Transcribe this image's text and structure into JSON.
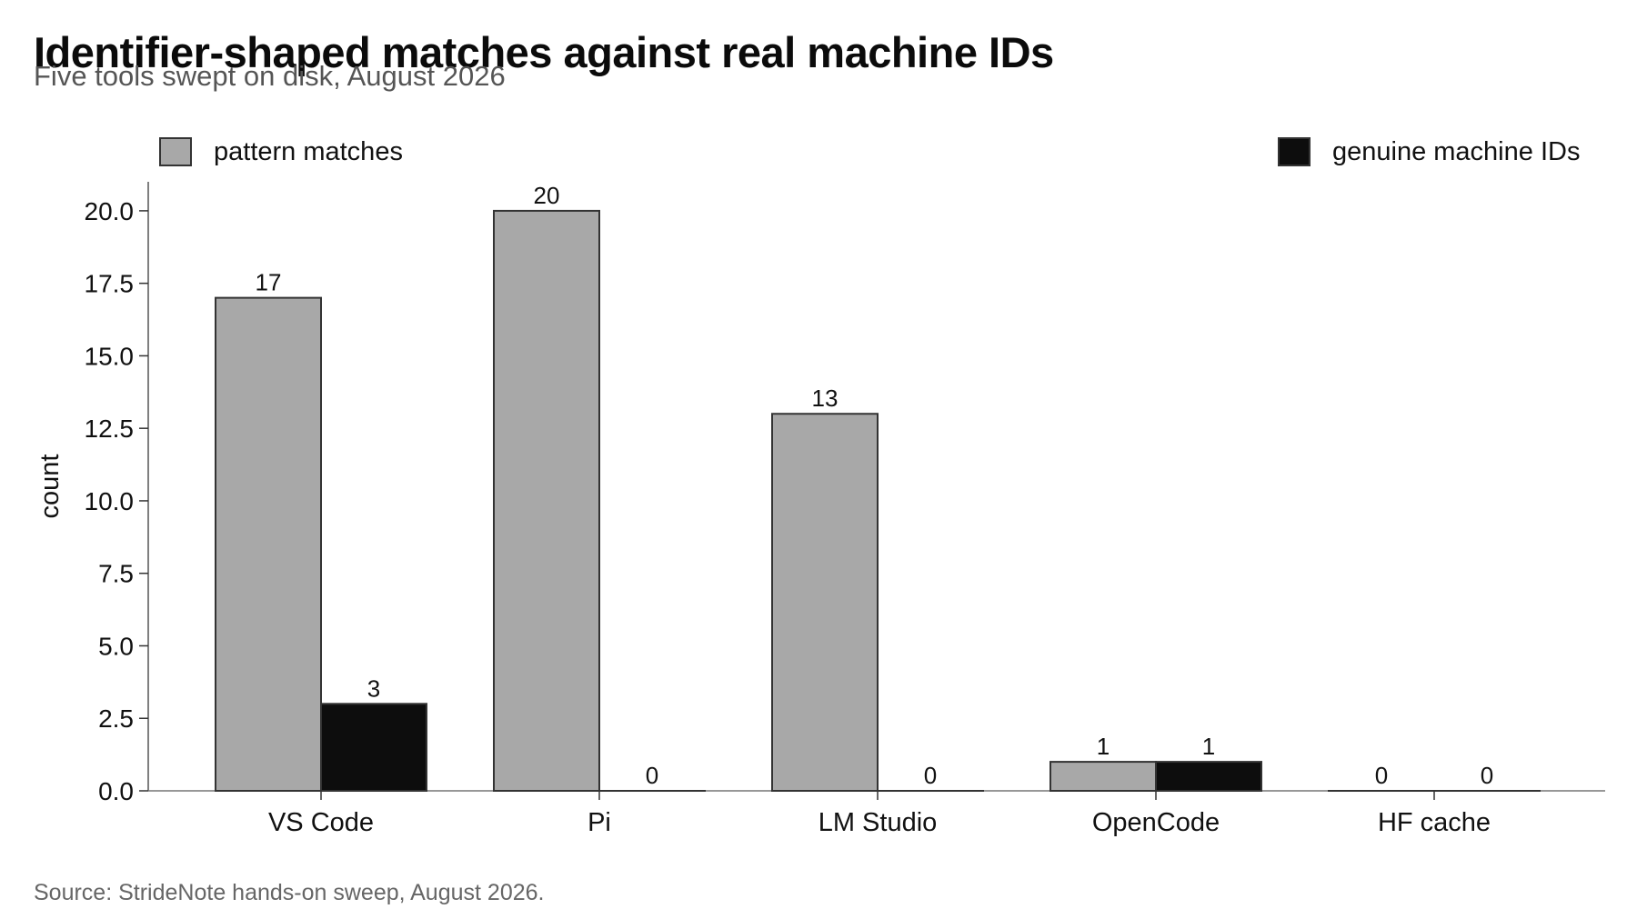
{
  "title": "Identifier-shaped matches against real machine IDs",
  "subtitle": "Five tools swept on disk, August 2026",
  "source": "Source: StrideNote hands-on sweep, August 2026.",
  "chart_data": {
    "type": "bar",
    "ylabel": "count",
    "xlabel": "",
    "categories": [
      "VS Code",
      "Pi",
      "LM Studio",
      "OpenCode",
      "HF cache"
    ],
    "series": [
      {
        "name": "pattern matches",
        "values": [
          17,
          20,
          13,
          1,
          0
        ],
        "color": "#a8a8a8"
      },
      {
        "name": "genuine machine IDs",
        "values": [
          3,
          0,
          0,
          1,
          0
        ],
        "color": "#0d0d0d"
      }
    ],
    "ylim": [
      0,
      21
    ],
    "yticks": [
      "0.0",
      "2.5",
      "5.0",
      "7.5",
      "10.0",
      "12.5",
      "15.0",
      "17.5",
      "20.0"
    ],
    "data_labels": true,
    "grid": false,
    "legend_placement": "top, split left and right"
  }
}
